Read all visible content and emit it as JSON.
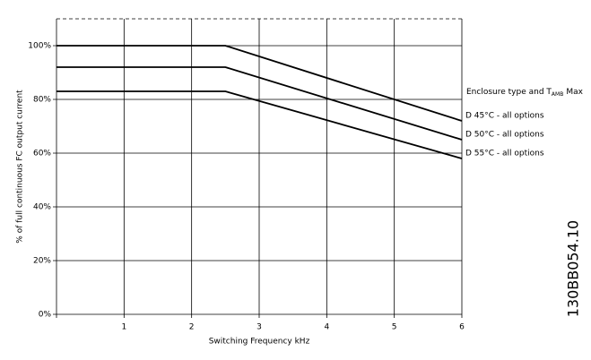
{
  "chart_data": {
    "type": "line",
    "x": [
      0,
      2.5,
      6
    ],
    "series": [
      {
        "name": "D 45°C - all options",
        "color": "#000000",
        "values": [
          100,
          100,
          72
        ]
      },
      {
        "name": "D 50°C - all options",
        "color": "#000000",
        "values": [
          92,
          92,
          65
        ]
      },
      {
        "name": "D 55°C - all options",
        "color": "#000000",
        "values": [
          83,
          83,
          58
        ]
      }
    ],
    "xlim": [
      0,
      6
    ],
    "xticks": [
      1,
      2,
      3,
      4,
      5,
      6
    ],
    "ylim": [
      0,
      110
    ],
    "yticks": [
      {
        "value": 0,
        "label": "0%"
      },
      {
        "value": 20,
        "label": "20%"
      },
      {
        "value": 40,
        "label": "40%"
      },
      {
        "value": 60,
        "label": "60%"
      },
      {
        "value": 80,
        "label": "80%"
      },
      {
        "value": 100,
        "label": "100%"
      }
    ],
    "xlabel": "Switching Frequency kHz",
    "ylabel": "% of full continuous FC output current",
    "legend_title": {
      "text": "Enclosure type and T",
      "subscript": "AMB",
      "suffix": "Max"
    },
    "code": "130BB054.10",
    "grid": true
  }
}
